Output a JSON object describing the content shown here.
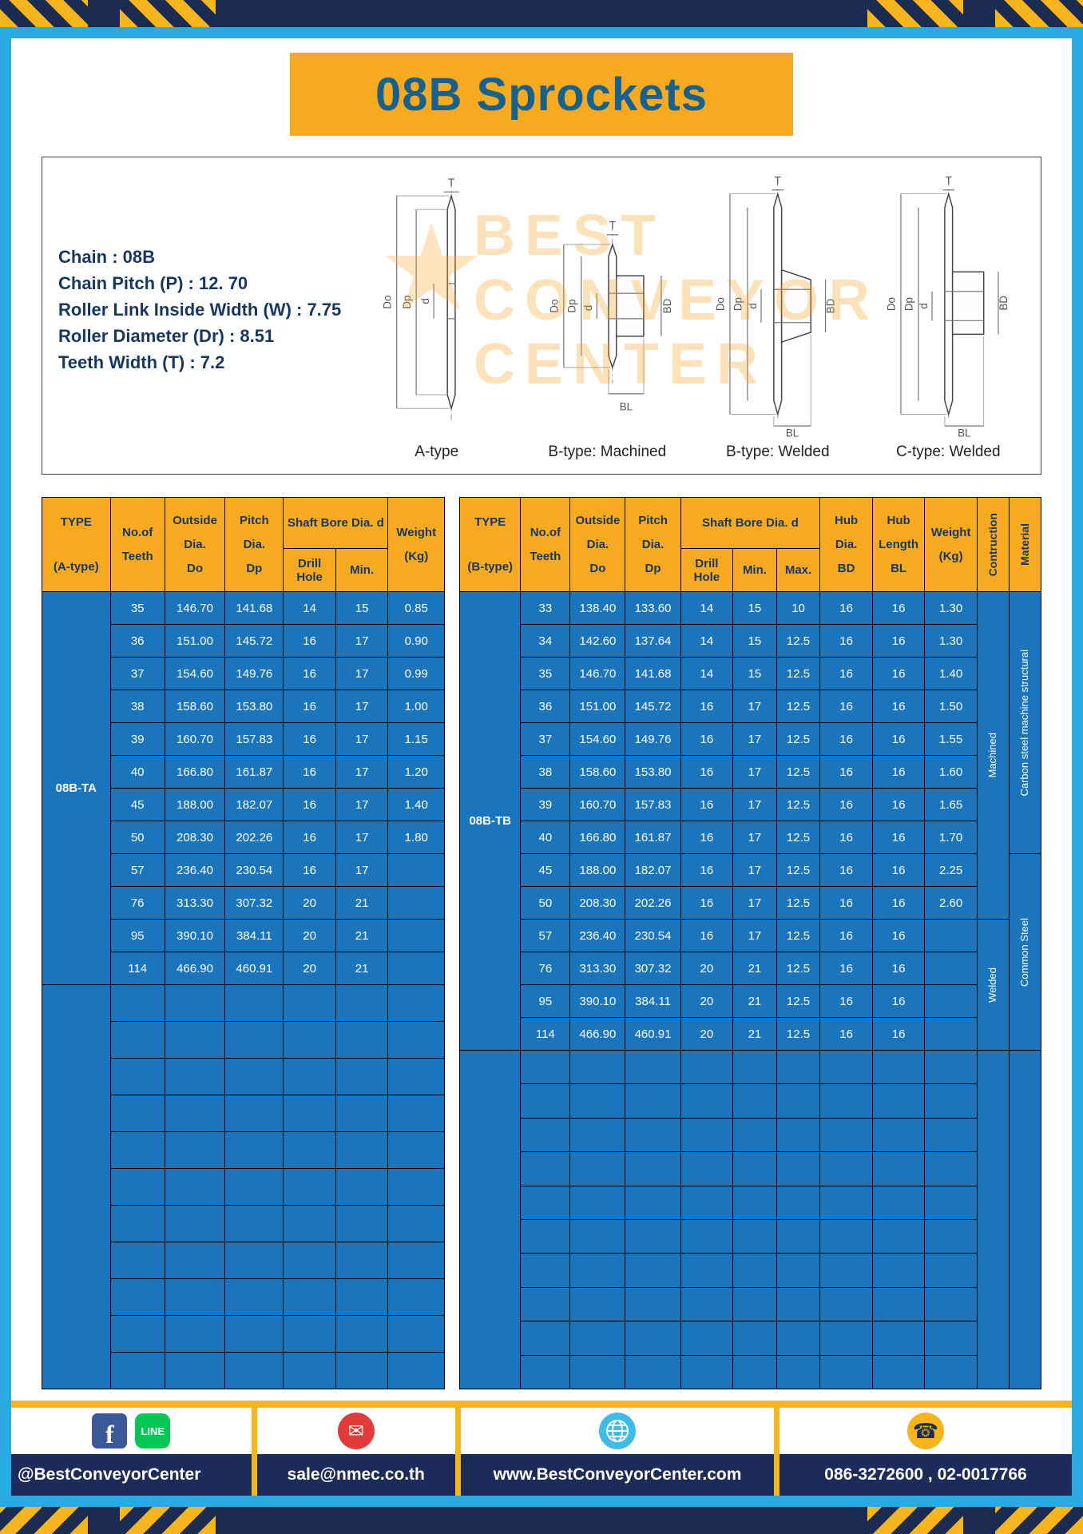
{
  "title": "08B Sprockets",
  "spec_lines": [
    "Chain : 08B",
    "Chain Pitch (P) : 12. 70",
    "Roller Link Inside Width (W) : 7.75",
    "Roller Diameter (Dr) : 8.51",
    "Teeth Width (T) : 7.2"
  ],
  "diagram_labels": [
    "A-type",
    "B-type: Machined",
    "B-type: Welded",
    "C-type: Welded"
  ],
  "dims": {
    "t": "T",
    "do": "Do",
    "dp": "Dp",
    "d": "d",
    "bd": "BD",
    "bl": "BL"
  },
  "watermark": {
    "line1": "BEST",
    "line2": "CONVEYOR",
    "line3": "CENTER",
    "star": "★"
  },
  "left_table": {
    "headers": {
      "type1": "TYPE",
      "type2": "(A-type)",
      "teeth1": "No.of",
      "teeth2": "Teeth",
      "outside1": "Outside",
      "outside2": "Dia.",
      "outside3": "Do",
      "pitch1": "Pitch Dia.",
      "pitch2": "Dp",
      "shaft": "Shaft Bore Dia. d",
      "drill": "Drill Hole",
      "min": "Min.",
      "weight1": "Weight",
      "weight2": "(Kg)"
    },
    "type_value": "08B-TA",
    "col_names": [
      "teeth",
      "outside-dia",
      "pitch-dia",
      "drill-hole",
      "min",
      "weight"
    ],
    "rows": [
      [
        "35",
        "146.70",
        "141.68",
        "14",
        "15",
        "0.85"
      ],
      [
        "36",
        "151.00",
        "145.72",
        "16",
        "17",
        "0.90"
      ],
      [
        "37",
        "154.60",
        "149.76",
        "16",
        "17",
        "0.99"
      ],
      [
        "38",
        "158.60",
        "153.80",
        "16",
        "17",
        "1.00"
      ],
      [
        "39",
        "160.70",
        "157.83",
        "16",
        "17",
        "1.15"
      ],
      [
        "40",
        "166.80",
        "161.87",
        "16",
        "17",
        "1.20"
      ],
      [
        "45",
        "188.00",
        "182.07",
        "16",
        "17",
        "1.40"
      ],
      [
        "50",
        "208.30",
        "202.26",
        "16",
        "17",
        "1.80"
      ],
      [
        "57",
        "236.40",
        "230.54",
        "16",
        "17",
        ""
      ],
      [
        "76",
        "313.30",
        "307.32",
        "20",
        "21",
        ""
      ],
      [
        "95",
        "390.10",
        "384.11",
        "20",
        "21",
        ""
      ],
      [
        "114",
        "466.90",
        "460.91",
        "20",
        "21",
        ""
      ]
    ],
    "empty_rows": 11
  },
  "right_table": {
    "headers": {
      "type1": "TYPE",
      "type2": "(B-type)",
      "teeth1": "No.of",
      "teeth2": "Teeth",
      "outside1": "Outside",
      "outside2": "Dia.",
      "outside3": "Do",
      "pitch1": "Pitch Dia.",
      "pitch2": "Dp",
      "shaft": "Shaft Bore Dia. d",
      "drill": "Drill Hole",
      "min": "Min.",
      "max": "Max.",
      "hub_dia1": "Hub Dia.",
      "hub_dia2": "BD",
      "hub_len1": "Hub",
      "hub_len2": "Length",
      "hub_len3": "BL",
      "weight1": "Weight",
      "weight2": "(Kg)",
      "construction": "Contruction",
      "material": "Material"
    },
    "type_value": "08B-TB",
    "col_names": [
      "teeth",
      "outside-dia",
      "pitch-dia",
      "drill-hole",
      "min",
      "max",
      "hub-dia",
      "hub-length",
      "weight"
    ],
    "rows": [
      [
        "33",
        "138.40",
        "133.60",
        "14",
        "15",
        "10",
        "16",
        "16",
        "1.30"
      ],
      [
        "34",
        "142.60",
        "137.64",
        "14",
        "15",
        "12.5",
        "16",
        "16",
        "1.30"
      ],
      [
        "35",
        "146.70",
        "141.68",
        "14",
        "15",
        "12.5",
        "16",
        "16",
        "1.40"
      ],
      [
        "36",
        "151.00",
        "145.72",
        "16",
        "17",
        "12.5",
        "16",
        "16",
        "1.50"
      ],
      [
        "37",
        "154.60",
        "149.76",
        "16",
        "17",
        "12.5",
        "16",
        "16",
        "1.55"
      ],
      [
        "38",
        "158.60",
        "153.80",
        "16",
        "17",
        "12.5",
        "16",
        "16",
        "1.60"
      ],
      [
        "39",
        "160.70",
        "157.83",
        "16",
        "17",
        "12.5",
        "16",
        "16",
        "1.65"
      ],
      [
        "40",
        "166.80",
        "161.87",
        "16",
        "17",
        "12.5",
        "16",
        "16",
        "1.70"
      ],
      [
        "45",
        "188.00",
        "182.07",
        "16",
        "17",
        "12.5",
        "16",
        "16",
        "2.25"
      ],
      [
        "50",
        "208.30",
        "202.26",
        "16",
        "17",
        "12.5",
        "16",
        "16",
        "2.60"
      ],
      [
        "57",
        "236.40",
        "230.54",
        "16",
        "17",
        "12.5",
        "16",
        "16",
        ""
      ],
      [
        "76",
        "313.30",
        "307.32",
        "20",
        "21",
        "12.5",
        "16",
        "16",
        ""
      ],
      [
        "95",
        "390.10",
        "384.11",
        "20",
        "21",
        "12.5",
        "16",
        "16",
        ""
      ],
      [
        "114",
        "466.90",
        "460.91",
        "20",
        "21",
        "12.5",
        "16",
        "16",
        ""
      ]
    ],
    "construction_groups": [
      {
        "label": "Machined",
        "span": 10
      },
      {
        "label": "Welded",
        "span": 4
      }
    ],
    "material_groups": [
      {
        "label": "Carbon steel  machine structural",
        "span": 8
      },
      {
        "label": "Common  Steel",
        "span": 6
      }
    ],
    "empty_rows": 10
  },
  "footer": {
    "social": "@BestConveyorCenter",
    "email": "sale@nmec.co.th",
    "website": "www.BestConveyorCenter.com",
    "phones": "086-3272600 , 02-0017766",
    "icons": {
      "facebook": "f",
      "line": "LINE",
      "email": "✉",
      "phone": "☎"
    }
  },
  "colors": {
    "frame_blue": "#29ABE2",
    "hazard_navy": "#1B2B52",
    "accent_yellow": "#F7A920",
    "stripe_yellow": "#F6B41D",
    "table_blue": "#1B75BC",
    "header_text_navy": "#17375E",
    "title_blue": "#17618F",
    "footer_navy": "#1D2B5B",
    "facebook_blue": "#3B5998",
    "line_green": "#06C755",
    "email_red": "#E23B3B",
    "globe_blue": "#3FBBE8"
  }
}
